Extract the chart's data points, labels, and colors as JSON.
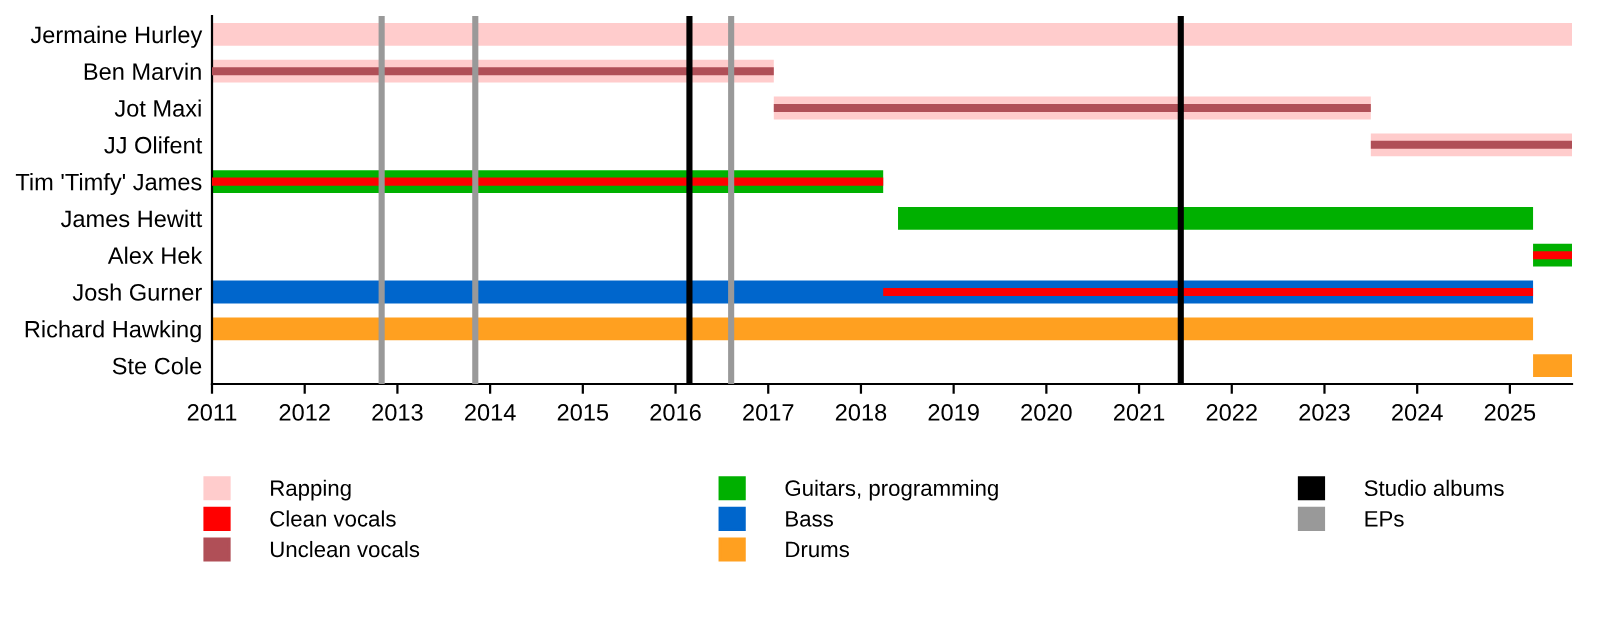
{
  "chart_data": {
    "type": "bar",
    "orientation": "horizontal",
    "categories": [
      "Jermaine Hurley",
      "Ben Marvin",
      "Jot Maxi",
      "JJ Olifent",
      "Tim 'Timfy' James",
      "James Hewitt",
      "Alex Hek",
      "Josh Gurner",
      "Richard Hawking",
      "Ste Cole"
    ],
    "series": [
      {
        "name": "Rapping",
        "color": "#ffcccc",
        "base": [
          2011,
          2011,
          2017.06,
          2023.5,
          null,
          null,
          null,
          null,
          null,
          null
        ],
        "values": [
          14.67,
          6.06,
          6.44,
          2.17,
          null,
          null,
          null,
          null,
          null,
          null
        ]
      },
      {
        "name": "Clean vocals",
        "color": "#ff0000",
        "base": [
          null,
          null,
          null,
          null,
          2011,
          null,
          2025.25,
          2018.24,
          null,
          null
        ],
        "values": [
          null,
          null,
          null,
          null,
          7.24,
          null,
          0.42,
          7.01,
          null,
          null
        ]
      },
      {
        "name": "Unclean vocals",
        "color": "#b04f57",
        "base": [
          null,
          2011,
          2017.06,
          2023.5,
          null,
          null,
          null,
          null,
          null,
          null
        ],
        "values": [
          null,
          6.06,
          6.44,
          2.17,
          null,
          null,
          null,
          null,
          null,
          null
        ]
      },
      {
        "name": "Guitars, programming",
        "color": "#00b000",
        "base": [
          null,
          null,
          null,
          null,
          2011,
          2018.4,
          2025.25,
          null,
          null,
          null
        ],
        "values": [
          null,
          null,
          null,
          null,
          7.24,
          6.85,
          0.42,
          null,
          null,
          null
        ]
      },
      {
        "name": "Bass",
        "color": "#0066cc",
        "base": [
          null,
          null,
          null,
          null,
          null,
          null,
          null,
          2011,
          null,
          null
        ],
        "values": [
          null,
          null,
          null,
          null,
          null,
          null,
          null,
          14.25,
          null,
          null
        ]
      },
      {
        "name": "Drums",
        "color": "#ffa020",
        "base": [
          null,
          null,
          null,
          null,
          null,
          null,
          null,
          null,
          2011,
          2025.25
        ],
        "values": [
          null,
          null,
          null,
          null,
          null,
          null,
          null,
          null,
          14.25,
          0.42
        ]
      }
    ],
    "ref_lines": [
      {
        "axis": "x",
        "value": 2016.15,
        "label": "Studio albums",
        "color": "#000000"
      },
      {
        "axis": "x",
        "value": 2021.45,
        "label": null,
        "color": "#000000"
      },
      {
        "axis": "x",
        "value": 2012.83,
        "label": "EPs",
        "color": "#999999"
      },
      {
        "axis": "x",
        "value": 2013.84,
        "label": null,
        "color": "#999999"
      },
      {
        "axis": "x",
        "value": 2016.6,
        "label": null,
        "color": "#999999"
      }
    ],
    "xlim": [
      2011,
      2025.67
    ],
    "xticks": [
      2011,
      2012,
      2013,
      2014,
      2015,
      2016,
      2017,
      2018,
      2019,
      2020,
      2021,
      2022,
      2023,
      2024,
      2025
    ],
    "legend": "bottom",
    "grid": false
  }
}
